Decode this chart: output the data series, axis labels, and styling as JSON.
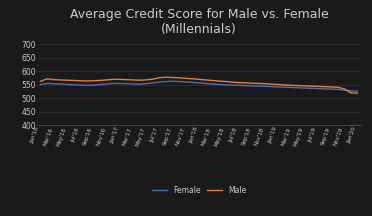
{
  "title": "Average Credit Score for Male vs. Female\n(Millennials)",
  "female": [
    551,
    555,
    554,
    553,
    551,
    550,
    549,
    548,
    549,
    551,
    553,
    555,
    555,
    554,
    553,
    552,
    554,
    557,
    560,
    562,
    563,
    562,
    560,
    559,
    557,
    555,
    553,
    551,
    550,
    549,
    548,
    547,
    546,
    545,
    544,
    543,
    542,
    541,
    540,
    539,
    538,
    537,
    536,
    535,
    534,
    533,
    530,
    528,
    526
  ],
  "male": [
    563,
    572,
    569,
    568,
    567,
    566,
    565,
    564,
    565,
    566,
    568,
    570,
    570,
    569,
    568,
    567,
    568,
    571,
    576,
    578,
    577,
    576,
    574,
    572,
    570,
    568,
    566,
    564,
    562,
    560,
    558,
    557,
    556,
    555,
    554,
    552,
    551,
    549,
    548,
    547,
    546,
    545,
    544,
    543,
    542,
    541,
    535,
    520,
    519
  ],
  "x_labels": [
    "Jan'16",
    "Mar'16",
    "May'16",
    "Jul'16",
    "Sep'16",
    "Nov'16",
    "Jan'17",
    "Mar'17",
    "May'17",
    "Jul'17",
    "Sep'17",
    "Nov'17",
    "Jan'18",
    "Mar'18",
    "May'18",
    "Jul'18",
    "Sep'18",
    "Nov'18",
    "Jan'19",
    "Mar'19",
    "May'19",
    "Jul'19",
    "Sep'19",
    "Nov'19",
    "Jan'20"
  ],
  "x_label_indices": [
    0,
    2,
    4,
    6,
    8,
    10,
    12,
    14,
    16,
    18,
    20,
    22,
    24,
    26,
    28,
    30,
    32,
    34,
    36,
    38,
    40,
    42,
    44,
    46,
    48
  ],
  "female_color": "#4472c4",
  "male_color": "#ed7d31",
  "ylim": [
    400,
    720
  ],
  "yticks": [
    400,
    450,
    500,
    550,
    600,
    650,
    700
  ],
  "bg_color": "#1a1a1a",
  "title_fontsize": 9,
  "legend_labels": [
    "Female",
    "Male"
  ],
  "text_color": "#cccccc",
  "grid_color": "#333333",
  "spine_color": "#555555"
}
